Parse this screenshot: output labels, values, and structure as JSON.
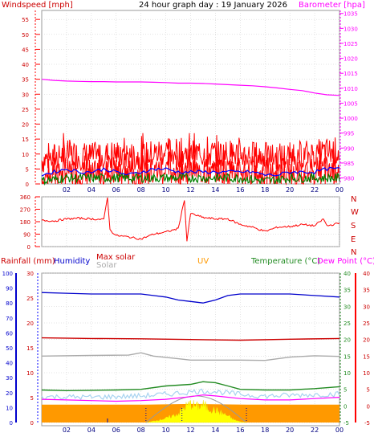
{
  "header": {
    "windspeed_label": "Windspeed [mph]",
    "title": "24 hour graph day : 19 January 2026",
    "barometer_label": "Barometer [hpa]"
  },
  "colors": {
    "wind_red": "#ff0000",
    "wind_avg_blue": "#0000ff",
    "wind_green": "#008000",
    "barometer_magenta": "#ff00ff",
    "direction_red": "#ff0000",
    "humidity_blue": "#0000cc",
    "max_solar_red": "#cc0000",
    "solar_grey": "#aaaaaa",
    "uv_orange": "#ff9900",
    "temperature_green": "#228b22",
    "dewpoint_magenta": "#ff00ff",
    "rain_blue": "#0000ff",
    "dew_red": "#ff0000",
    "grid": "#c8c8c8"
  },
  "chart_data": [
    {
      "type": "line",
      "name": "wind-barometer",
      "x_ticks": [
        "02",
        "04",
        "06",
        "08",
        "10",
        "12",
        "14",
        "16",
        "18",
        "20",
        "22",
        "00"
      ],
      "left_axis": {
        "label": "Windspeed [mph]",
        "ticks": [
          0,
          5,
          10,
          15,
          20,
          25,
          30,
          35,
          40,
          45,
          50,
          55
        ],
        "range": [
          0,
          58
        ]
      },
      "right_axis": {
        "label": "Barometer [hpa]",
        "ticks": [
          980,
          985,
          990,
          995,
          1000,
          1005,
          1010,
          1015,
          1020,
          1025,
          1030,
          1035
        ],
        "range": [
          978,
          1036
        ]
      },
      "series": {
        "barometer": [
          [
            0,
            1013.0
          ],
          [
            1,
            1012.6
          ],
          [
            2,
            1012.4
          ],
          [
            3,
            1012.3
          ],
          [
            4,
            1012.2
          ],
          [
            5,
            1012.2
          ],
          [
            6,
            1012.1
          ],
          [
            7,
            1012.1
          ],
          [
            8,
            1012.1
          ],
          [
            9,
            1012.0
          ],
          [
            10,
            1011.9
          ],
          [
            11,
            1011.7
          ],
          [
            12,
            1011.7
          ],
          [
            13,
            1011.6
          ],
          [
            14,
            1011.4
          ],
          [
            15,
            1011.2
          ],
          [
            16,
            1011.0
          ],
          [
            17,
            1010.8
          ],
          [
            18,
            1010.5
          ],
          [
            19,
            1010.1
          ],
          [
            20,
            1009.6
          ],
          [
            21,
            1009.2
          ],
          [
            22,
            1008.4
          ],
          [
            23,
            1007.8
          ],
          [
            24,
            1007.6
          ]
        ],
        "gust_baseline": [
          [
            0,
            8
          ],
          [
            2,
            10
          ],
          [
            4,
            9
          ],
          [
            6,
            10
          ],
          [
            8,
            9
          ],
          [
            10,
            11
          ],
          [
            12,
            10
          ],
          [
            14,
            10
          ],
          [
            16,
            10
          ],
          [
            18,
            9
          ],
          [
            20,
            9
          ],
          [
            22,
            10
          ],
          [
            24,
            11
          ]
        ],
        "average": [
          [
            0,
            3
          ],
          [
            1,
            4
          ],
          [
            2,
            5
          ],
          [
            3,
            4
          ],
          [
            4,
            4
          ],
          [
            5,
            5
          ],
          [
            6,
            4
          ],
          [
            7,
            3
          ],
          [
            8,
            4
          ],
          [
            9,
            5
          ],
          [
            10,
            5
          ],
          [
            11,
            4
          ],
          [
            12,
            4
          ],
          [
            13,
            4
          ],
          [
            14,
            4
          ],
          [
            15,
            4
          ],
          [
            16,
            4
          ],
          [
            17,
            4
          ],
          [
            18,
            3
          ],
          [
            19,
            3
          ],
          [
            20,
            4
          ],
          [
            21,
            4
          ],
          [
            22,
            4
          ],
          [
            23,
            5
          ],
          [
            24,
            5
          ]
        ],
        "speed_green": [
          [
            0,
            1
          ],
          [
            2,
            2
          ],
          [
            4,
            2
          ],
          [
            6,
            2
          ],
          [
            8,
            2
          ],
          [
            10,
            2
          ],
          [
            12,
            2
          ],
          [
            14,
            2
          ],
          [
            16,
            2
          ],
          [
            18,
            1
          ],
          [
            20,
            2
          ],
          [
            22,
            2
          ],
          [
            24,
            2
          ]
        ]
      }
    },
    {
      "type": "line",
      "name": "wind-direction",
      "x_ticks": [],
      "left_axis": {
        "ticks": [
          0,
          90,
          180,
          270,
          360
        ],
        "range": [
          0,
          360
        ]
      },
      "right_labels": [
        "N",
        "W",
        "S",
        "E",
        "N"
      ],
      "series": {
        "direction": [
          [
            0,
            190
          ],
          [
            1,
            185
          ],
          [
            2,
            200
          ],
          [
            3,
            205
          ],
          [
            4,
            200
          ],
          [
            5,
            195
          ],
          [
            5.3,
            360
          ],
          [
            5.5,
            120
          ],
          [
            6,
            80
          ],
          [
            7,
            70
          ],
          [
            8,
            55
          ],
          [
            9,
            90
          ],
          [
            10,
            105
          ],
          [
            11,
            130
          ],
          [
            11.5,
            340
          ],
          [
            11.7,
            40
          ],
          [
            12,
            240
          ],
          [
            13,
            210
          ],
          [
            14,
            200
          ],
          [
            15,
            200
          ],
          [
            16,
            160
          ],
          [
            17,
            140
          ],
          [
            18,
            110
          ],
          [
            19,
            140
          ],
          [
            20,
            145
          ],
          [
            21,
            160
          ],
          [
            22,
            150
          ],
          [
            22.7,
            200
          ],
          [
            23,
            150
          ],
          [
            24,
            170
          ]
        ]
      }
    },
    {
      "type": "line",
      "name": "temperature-humidity-solar",
      "x_ticks": [
        "02",
        "04",
        "06",
        "08",
        "10",
        "12",
        "14",
        "16",
        "18",
        "20",
        "22",
        "00"
      ],
      "rainfall_axis": {
        "label": "Rainfall (mm)",
        "ticks": [
          0,
          5,
          10,
          15,
          20,
          25,
          30
        ],
        "range": [
          0,
          30
        ]
      },
      "humidity_axis": {
        "label": "Humidity",
        "ticks": [
          0,
          10,
          20,
          30,
          40,
          50,
          60,
          70,
          80,
          90,
          100
        ],
        "range": [
          0,
          100
        ]
      },
      "temperature_axis": {
        "label": "Temperature (°C)",
        "ticks": [
          -5,
          0,
          5,
          10,
          15,
          20,
          25,
          30,
          35,
          40
        ],
        "range": [
          -5,
          40
        ]
      },
      "dewpoint_axis": {
        "label": "Dew Point (°C)",
        "ticks": [
          -5,
          0,
          5,
          10,
          15,
          20,
          25,
          30,
          35,
          40
        ],
        "range": [
          -5,
          40
        ]
      },
      "legend": {
        "max_solar": "Max solar",
        "solar": "Solar",
        "uv": "UV"
      },
      "series": {
        "humidity": [
          [
            0,
            87
          ],
          [
            2,
            86.5
          ],
          [
            4,
            86
          ],
          [
            6,
            86
          ],
          [
            8,
            86
          ],
          [
            9,
            85
          ],
          [
            10,
            84
          ],
          [
            11,
            82
          ],
          [
            12,
            81
          ],
          [
            13,
            80
          ],
          [
            14,
            82
          ],
          [
            15,
            85
          ],
          [
            16,
            86
          ],
          [
            18,
            86
          ],
          [
            20,
            86
          ],
          [
            22,
            85
          ],
          [
            24,
            84
          ]
        ],
        "max_solar": [
          [
            0,
            20.5
          ],
          [
            4,
            20.3
          ],
          [
            8,
            20.2
          ],
          [
            12,
            20.0
          ],
          [
            16,
            19.8
          ],
          [
            20,
            20.1
          ],
          [
            24,
            20.3
          ]
        ],
        "solar_grey": [
          [
            0,
            15
          ],
          [
            4,
            15.2
          ],
          [
            7,
            15.3
          ],
          [
            8,
            16
          ],
          [
            9,
            15
          ],
          [
            11,
            14.2
          ],
          [
            12,
            13.8
          ],
          [
            16,
            13.8
          ],
          [
            18,
            13.7
          ],
          [
            20,
            14.7
          ],
          [
            22,
            15.1
          ],
          [
            24,
            14.9
          ]
        ],
        "temperature": [
          [
            0,
            4.8
          ],
          [
            2,
            4.6
          ],
          [
            4,
            4.7
          ],
          [
            6,
            4.8
          ],
          [
            8,
            5.0
          ],
          [
            10,
            6.0
          ],
          [
            12,
            6.5
          ],
          [
            13,
            7.3
          ],
          [
            14,
            7.0
          ],
          [
            15,
            6.0
          ],
          [
            16,
            5.0
          ],
          [
            18,
            4.8
          ],
          [
            20,
            4.8
          ],
          [
            22,
            5.2
          ],
          [
            24,
            5.8
          ]
        ],
        "light_blue": [
          [
            0,
            2.8
          ],
          [
            4,
            2.6
          ],
          [
            8,
            3.0
          ],
          [
            10,
            3.5
          ],
          [
            12,
            4.2
          ],
          [
            13,
            4.5
          ],
          [
            14,
            4.3
          ],
          [
            16,
            3.5
          ],
          [
            18,
            2.9
          ],
          [
            20,
            3.2
          ],
          [
            22,
            3.4
          ],
          [
            24,
            3.6
          ]
        ],
        "dewpoint": [
          [
            0,
            2.0
          ],
          [
            2,
            1.8
          ],
          [
            4,
            1.6
          ],
          [
            6,
            1.4
          ],
          [
            8,
            1.6
          ],
          [
            10,
            2.0
          ],
          [
            12,
            2.8
          ],
          [
            13,
            3.3
          ],
          [
            14,
            3.0
          ],
          [
            16,
            2.2
          ],
          [
            18,
            1.8
          ],
          [
            20,
            1.8
          ],
          [
            22,
            2.2
          ],
          [
            24,
            2.6
          ]
        ],
        "solar_fill": [
          [
            8.4,
            0
          ],
          [
            9,
            0.5
          ],
          [
            10,
            1.5
          ],
          [
            11,
            3.2
          ],
          [
            11.5,
            5.5
          ],
          [
            12,
            6.8
          ],
          [
            12.5,
            5.8
          ],
          [
            13,
            6.5
          ],
          [
            13.5,
            5.0
          ],
          [
            14,
            4.5
          ],
          [
            14.5,
            3.5
          ],
          [
            15,
            2.4
          ],
          [
            15.5,
            1.0
          ],
          [
            16,
            0.3
          ],
          [
            16.5,
            0
          ]
        ],
        "uv_fill": [
          [
            0,
            0.4
          ],
          [
            8.4,
            0.4
          ],
          [
            12,
            0.6
          ],
          [
            16.5,
            0.4
          ],
          [
            24,
            0.4
          ]
        ]
      }
    }
  ]
}
